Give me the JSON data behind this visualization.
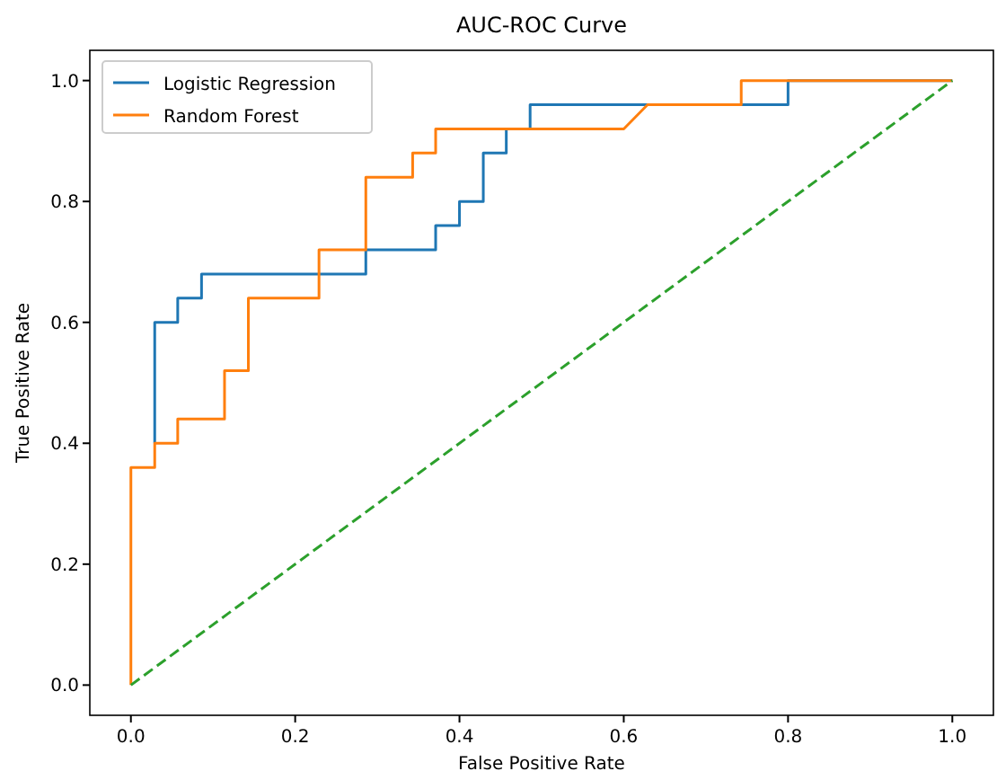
{
  "chart_data": {
    "type": "line",
    "title": "AUC-ROC Curve",
    "xlabel": "False Positive Rate",
    "ylabel": "True Positive Rate",
    "xlim": [
      -0.05,
      1.05
    ],
    "ylim": [
      -0.05,
      1.05
    ],
    "xticks": [
      {
        "value": 0,
        "label": "0.0"
      },
      {
        "value": 0.2,
        "label": "0.2"
      },
      {
        "value": 0.4,
        "label": "0.4"
      },
      {
        "value": 0.6,
        "label": "0.6"
      },
      {
        "value": 0.8,
        "label": "0.8"
      },
      {
        "value": 1,
        "label": "1.0"
      }
    ],
    "yticks": [
      {
        "value": 0,
        "label": "0.0"
      },
      {
        "value": 0.2,
        "label": "0.2"
      },
      {
        "value": 0.4,
        "label": "0.4"
      },
      {
        "value": 0.6,
        "label": "0.6"
      },
      {
        "value": 0.8,
        "label": "0.8"
      },
      {
        "value": 1,
        "label": "1.0"
      }
    ],
    "grid": false,
    "legend": "top left",
    "line_style": "solid",
    "series": [
      {
        "name": "Logistic Regression",
        "color": "#1f77b4",
        "x": [
          0.029,
          0.029,
          0.057,
          0.057,
          0.086,
          0.086,
          0.286,
          0.286,
          0.371,
          0.371,
          0.4,
          0.4,
          0.429,
          0.429,
          0.457,
          0.457,
          0.486,
          0.486,
          0.8,
          0.8,
          1
        ],
        "values": [
          0.4,
          0.6,
          0.6,
          0.64,
          0.64,
          0.68,
          0.68,
          0.72,
          0.72,
          0.76,
          0.76,
          0.8,
          0.8,
          0.88,
          0.88,
          0.92,
          0.92,
          0.96,
          0.96,
          1,
          1
        ]
      },
      {
        "name": "Random Forest",
        "color": "#ff7f0e",
        "x": [
          0,
          0,
          0.029,
          0.029,
          0.057,
          0.057,
          0.114,
          0.114,
          0.143,
          0.143,
          0.229,
          0.229,
          0.286,
          0.286,
          0.343,
          0.343,
          0.371,
          0.371,
          0.6,
          0.629,
          0.743,
          0.743,
          1
        ],
        "values": [
          0,
          0.36,
          0.36,
          0.4,
          0.4,
          0.44,
          0.44,
          0.52,
          0.52,
          0.64,
          0.64,
          0.72,
          0.72,
          0.84,
          0.84,
          0.88,
          0.88,
          0.92,
          0.92,
          0.96,
          0.96,
          1,
          1
        ]
      },
      {
        "color": "#2ca02c",
        "line_style": "dashed",
        "x": [
          0,
          1
        ],
        "values": [
          0,
          1
        ]
      }
    ]
  }
}
